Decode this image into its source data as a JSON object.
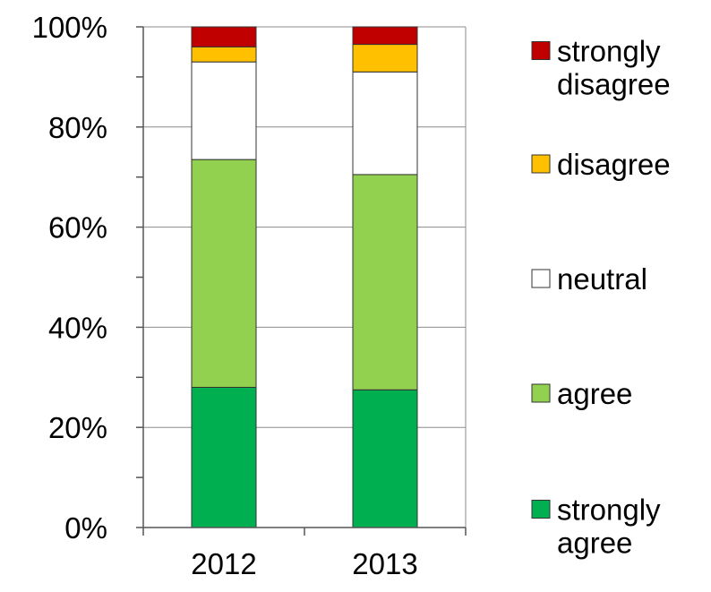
{
  "chart_data": {
    "type": "bar",
    "stacked": true,
    "percent": true,
    "categories": [
      "2012",
      "2013"
    ],
    "series": [
      {
        "name": "strongly agree",
        "color": "#00b050",
        "values": [
          28,
          27.5
        ]
      },
      {
        "name": "agree",
        "color": "#92d050",
        "values": [
          45.5,
          43
        ]
      },
      {
        "name": "neutral",
        "color": "#ffffff",
        "values": [
          19.5,
          20.5
        ]
      },
      {
        "name": "disagree",
        "color": "#ffc000",
        "values": [
          3,
          5.5
        ]
      },
      {
        "name": "strongly disagree",
        "color": "#c00000",
        "values": [
          4,
          3.5
        ]
      }
    ],
    "legend_lines": [
      [
        "strongly",
        "disagree"
      ],
      [
        "disagree"
      ],
      [
        "neutral"
      ],
      [
        "agree"
      ],
      [
        "strongly",
        "agree"
      ]
    ],
    "y_ticks": [
      "0%",
      "20%",
      "40%",
      "60%",
      "80%",
      "100%"
    ],
    "ylim": [
      0,
      100
    ],
    "grid": true,
    "legend_position": "right"
  }
}
